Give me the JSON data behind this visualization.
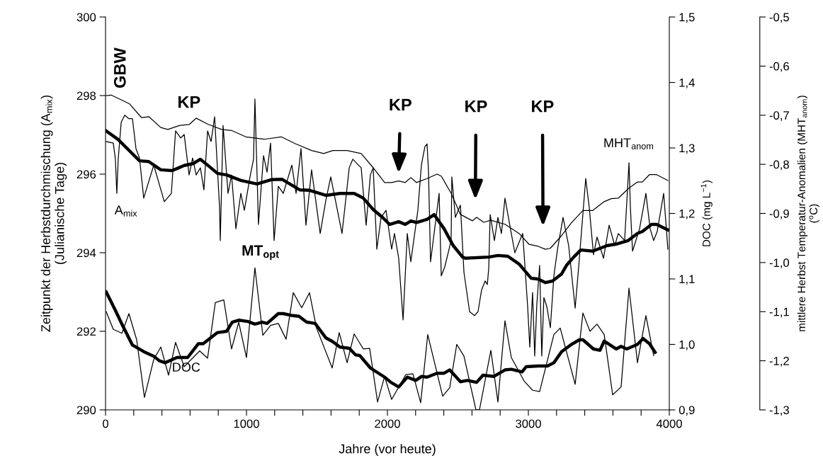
{
  "chart_data": {
    "type": "line",
    "xlabel": "Jahre (vor heute)",
    "ylabel": "Zeitpunkt der Herbstdurchmischung (A$_{mix}$)\n(Julianische Tage)",
    "y2label": "DOC (mg L$^{−1}$)",
    "y3label": "mittlere Herbst Temperatur-Anomalien (MHT$_{anom}$)\n($^{o}$C)",
    "xlim": [
      0,
      4000
    ],
    "xticks": [
      0,
      {
        "value": 200,
        "label": null
      },
      {
        "value": 400,
        "label": null
      },
      {
        "value": 600,
        "label": null
      },
      {
        "value": 800,
        "label": null
      },
      1000,
      {
        "value": 1200,
        "label": null
      },
      {
        "value": 1400,
        "label": null
      },
      {
        "value": 1600,
        "label": null
      },
      {
        "value": 1800,
        "label": null
      },
      2000,
      {
        "value": 2200,
        "label": null
      },
      {
        "value": 2400,
        "label": null
      },
      {
        "value": 2600,
        "label": null
      },
      {
        "value": 2800,
        "label": null
      },
      3000,
      {
        "value": 3200,
        "label": null
      },
      {
        "value": 3400,
        "label": null
      },
      {
        "value": 3600,
        "label": null
      },
      {
        "value": 3800,
        "label": null
      },
      4000
    ],
    "ylim": [
      290,
      300
    ],
    "yticks": [
      290,
      292,
      294,
      296,
      298,
      300
    ],
    "y2lim": [
      0.9,
      1.5
    ],
    "y2ticks": [
      {
        "value": 0.9,
        "label": "0,9"
      },
      {
        "value": 1.0,
        "label": "1,0"
      },
      {
        "value": 1.1,
        "label": "1,1"
      },
      {
        "value": 1.2,
        "label": "1,2"
      },
      {
        "value": 1.3,
        "label": "1,3"
      },
      {
        "value": 1.4,
        "label": "1,4"
      },
      {
        "value": 1.5,
        "label": "1,5"
      }
    ],
    "y3lim": [
      -1.3,
      -0.5
    ],
    "y3ticks": [
      {
        "value": -1.3,
        "label": "-1,3"
      },
      {
        "value": -1.2,
        "label": "-1,2"
      },
      {
        "value": -1.1,
        "label": "-1,1"
      },
      {
        "value": -1.0,
        "label": "-1,0"
      },
      {
        "value": -0.9,
        "label": "-0,9"
      },
      {
        "value": -0.8,
        "label": "-0,8"
      },
      {
        "value": -0.7,
        "label": "-0,7"
      },
      {
        "value": -0.6,
        "label": "-0,6"
      },
      {
        "value": -0.5,
        "label": "-0,5"
      }
    ],
    "grid": false,
    "legend": false,
    "series": [
      {
        "color": "#000000",
        "axis": "y",
        "x": [
          5,
          55,
          70,
          80,
          90,
          111,
          136,
          166,
          191,
          216,
          241,
          271,
          342,
          417,
          467,
          497,
          533,
          558,
          593,
          618,
          643,
          673,
          698,
          724,
          749,
          774,
          809,
          814,
          834,
          869,
          894,
          925,
          960,
          985,
          1025,
          1050,
          1060,
          1085,
          1121,
          1146,
          1171,
          1196,
          1226,
          1261,
          1322,
          1352,
          1387,
          1422,
          1462,
          1523,
          1563,
          1598,
          1678,
          1729,
          1754,
          1789,
          1814,
          1849,
          1879,
          1899,
          1925,
          1955,
          1990,
          2030,
          2050,
          2080,
          2111,
          2141,
          2166,
          2216,
          2241,
          2266,
          2281,
          2291,
          2306,
          2367,
          2382,
          2407,
          2452,
          2457,
          2482,
          2518,
          2543,
          2583,
          2618,
          2643,
          2668,
          2693,
          2709,
          2719,
          2729,
          2759,
          2784,
          2809,
          2834,
          2879,
          2904,
          2960,
          2995,
          3010,
          3030,
          3045,
          3060,
          3080,
          3095,
          3110,
          3131,
          3156,
          3181,
          3206,
          3246,
          3286,
          3332,
          3357,
          3407,
          3432,
          3462,
          3487,
          3533,
          3573,
          3613,
          3638,
          3683,
          3714,
          3724,
          3739,
          3789,
          3834,
          3864,
          3889,
          3914,
          3960,
          3990
        ],
        "values": [
          296.83,
          296.79,
          296.38,
          295.51,
          296.38,
          297.32,
          297.5,
          297.41,
          297.41,
          296.65,
          296.41,
          295.39,
          296.23,
          295.3,
          295.51,
          297.1,
          296.92,
          297.01,
          295.98,
          296.41,
          295.98,
          296.16,
          295.6,
          297.1,
          296.83,
          297.46,
          295.15,
          294.31,
          297.24,
          295.51,
          295.98,
          294.61,
          295.51,
          295.08,
          295.93,
          296.38,
          297.91,
          294.72,
          296.47,
          296.05,
          296.79,
          294.31,
          295.69,
          295.51,
          296.23,
          295.51,
          296.65,
          294.7,
          296.11,
          294.49,
          295.33,
          295.93,
          294.49,
          296.16,
          296.38,
          296.25,
          296.16,
          294.7,
          295.98,
          296.16,
          294.09,
          294.9,
          295.08,
          294.09,
          294.49,
          293.86,
          292.29,
          294.49,
          293.77,
          295.08,
          296.23,
          296.7,
          296.77,
          296.11,
          293.77,
          295.51,
          293.41,
          293.64,
          294.31,
          295.93,
          294.9,
          295.21,
          293.5,
          292.5,
          292.4,
          292.5,
          293.05,
          293.28,
          293.19,
          293.62,
          294.97,
          294.31,
          294.9,
          294.49,
          295.39,
          294.49,
          294.0,
          294.49,
          292.63,
          291.6,
          292.99,
          291.37,
          292.68,
          293.68,
          291.37,
          292.86,
          292.63,
          292.09,
          293.41,
          294.07,
          294.9,
          294.18,
          292.59,
          293.64,
          295.89,
          295.15,
          293.95,
          294.4,
          293.86,
          294.7,
          294.18,
          294.49,
          294.31,
          296.29,
          295.15,
          294.04,
          294.61,
          295.51,
          294.61,
          294.31,
          294.54,
          295.51,
          294.09
        ]
      },
      {
        "color": "#000000",
        "axis": "y",
        "x": [
          5,
          90,
          171,
          241,
          307,
          392,
          472,
          558,
          623,
          673,
          734,
          794,
          859,
          960,
          1075,
          1176,
          1251,
          1377,
          1447,
          1563,
          1663,
          1764,
          1829,
          1899,
          1965,
          2015,
          2080,
          2126,
          2166,
          2206,
          2281,
          2332,
          2402,
          2467,
          2533,
          2553,
          2719,
          2784,
          2854,
          2935,
          3020,
          3070,
          3121,
          3171,
          3236,
          3271,
          3322,
          3372,
          3457,
          3558,
          3623,
          3708,
          3774,
          3809,
          3874,
          3910,
          3990
        ],
        "values": [
          297.1,
          296.88,
          296.59,
          296.34,
          296.32,
          296.11,
          296.09,
          296.22,
          296.27,
          296.38,
          296.2,
          296.02,
          295.98,
          295.84,
          295.75,
          295.86,
          295.87,
          295.6,
          295.59,
          295.46,
          295.51,
          295.51,
          295.39,
          295.1,
          294.9,
          294.72,
          294.79,
          294.72,
          294.81,
          294.77,
          294.85,
          294.97,
          294.61,
          294.18,
          293.89,
          293.86,
          293.89,
          293.93,
          293.91,
          293.71,
          293.35,
          293.33,
          293.24,
          293.28,
          293.46,
          293.68,
          293.89,
          294.07,
          294.04,
          294.18,
          294.22,
          294.31,
          294.49,
          294.54,
          294.72,
          294.72,
          294.58
        ]
      },
      {
        "color": "#000000",
        "axis": "y3",
        "x": [
          5,
          40,
          171,
          256,
          307,
          392,
          442,
          523,
          593,
          643,
          724,
          824,
          894,
          995,
          1126,
          1246,
          1347,
          1462,
          1548,
          1613,
          1714,
          1814,
          1899,
          1980,
          2030,
          2080,
          2126,
          2166,
          2206,
          2281,
          2352,
          2382,
          2452,
          2518,
          2603,
          2633,
          2683,
          2734,
          2834,
          2935,
          3005,
          3070,
          3121,
          3156,
          3236,
          3306,
          3387,
          3457,
          3538,
          3588,
          3638,
          3708,
          3774,
          3809,
          3859,
          3910,
          3990
        ],
        "values": [
          -0.66,
          -0.659,
          -0.677,
          -0.705,
          -0.703,
          -0.725,
          -0.729,
          -0.721,
          -0.719,
          -0.706,
          -0.718,
          -0.729,
          -0.731,
          -0.744,
          -0.749,
          -0.744,
          -0.758,
          -0.772,
          -0.778,
          -0.772,
          -0.772,
          -0.778,
          -0.807,
          -0.837,
          -0.837,
          -0.834,
          -0.837,
          -0.827,
          -0.837,
          -0.829,
          -0.82,
          -0.824,
          -0.859,
          -0.902,
          -0.915,
          -0.908,
          -0.918,
          -0.914,
          -0.922,
          -0.941,
          -0.963,
          -0.967,
          -0.973,
          -0.971,
          -0.945,
          -0.919,
          -0.894,
          -0.894,
          -0.876,
          -0.87,
          -0.869,
          -0.85,
          -0.836,
          -0.836,
          -0.821,
          -0.821,
          -0.833
        ]
      },
      {
        "color": "#000000",
        "axis": "y2",
        "x": [
          5,
          55,
          116,
          166,
          221,
          276,
          342,
          392,
          447,
          497,
          558,
          668,
          724,
          779,
          839,
          894,
          945,
          1000,
          1060,
          1116,
          1171,
          1226,
          1281,
          1332,
          1392,
          1447,
          1497,
          1608,
          1658,
          1714,
          1764,
          1829,
          1874,
          1930,
          1980,
          2030,
          2131,
          2181,
          2236,
          2286,
          2392,
          2442,
          2492,
          2543,
          2628,
          2653,
          2734,
          2784,
          2834,
          2879,
          2970,
          3030,
          3080,
          3181,
          3226,
          3332,
          3387,
          3437,
          3487,
          3538,
          3598,
          3658,
          3714,
          3774,
          3834,
          3889
        ],
        "values": [
          1.05,
          1.023,
          1.017,
          1.047,
          1.007,
          0.919,
          0.977,
          0.996,
          0.953,
          1.003,
          0.966,
          0.99,
          0.979,
          1.064,
          1.068,
          0.993,
          1.034,
          0.98,
          1.117,
          1.014,
          1.029,
          1.032,
          1.008,
          1.079,
          1.056,
          1.079,
          1.025,
          0.964,
          1.018,
          0.972,
          1.016,
          0.993,
          0.994,
          0.912,
          0.951,
          0.916,
          0.954,
          0.955,
          0.911,
          1.015,
          0.921,
          0.934,
          1.0,
          0.982,
          0.9,
          0.9,
          0.991,
          0.912,
          1.036,
          0.98,
          0.944,
          0.93,
          0.928,
          1.015,
          1.025,
          0.939,
          1.048,
          1.02,
          1.031,
          1.015,
          0.923,
          0.935,
          1.086,
          0.972,
          1.044,
          0.983
        ]
      },
      {
        "color": "#000000",
        "axis": "y2",
        "x": [
          5,
          70,
          121,
          191,
          271,
          342,
          382,
          422,
          507,
          583,
          658,
          693,
          794,
          859,
          899,
          945,
          1010,
          1060,
          1111,
          1146,
          1226,
          1261,
          1327,
          1372,
          1427,
          1487,
          1563,
          1613,
          1663,
          1729,
          1774,
          1804,
          1879,
          1980,
          2025,
          2080,
          2141,
          2201,
          2241,
          2281,
          2352,
          2402,
          2442,
          2518,
          2568,
          2633,
          2678,
          2754,
          2834,
          2879,
          2955,
          2985,
          3070,
          3136,
          3181,
          3236,
          3306,
          3362,
          3387,
          3462,
          3508,
          3538,
          3623,
          3658,
          3698,
          3774,
          3814,
          3859,
          3899
        ],
        "values": [
          1.08,
          1.052,
          1.029,
          0.999,
          0.989,
          0.982,
          0.975,
          0.972,
          0.98,
          0.98,
          1.001,
          1.001,
          1.018,
          1.02,
          1.034,
          1.037,
          1.035,
          1.031,
          1.034,
          1.032,
          1.047,
          1.047,
          1.044,
          1.043,
          1.034,
          1.032,
          1.01,
          1.004,
          0.996,
          0.994,
          0.984,
          0.983,
          0.964,
          0.95,
          0.942,
          0.935,
          0.95,
          0.945,
          0.951,
          0.95,
          0.956,
          0.956,
          0.961,
          0.943,
          0.945,
          0.942,
          0.953,
          0.951,
          0.961,
          0.962,
          0.958,
          0.966,
          0.967,
          0.967,
          0.972,
          0.989,
          1.0,
          1.007,
          1.007,
          0.993,
          0.991,
          1.005,
          0.993,
          0.997,
          0.993,
          1.0,
          1.009,
          1.001,
          0.988
        ]
      }
    ],
    "annotations": [
      "GBW",
      "KP",
      "KP",
      "KP",
      "KP",
      "MT$_{opt}$",
      "A$_{mix}$",
      "DOC",
      "MHT$_{anom}$"
    ]
  }
}
